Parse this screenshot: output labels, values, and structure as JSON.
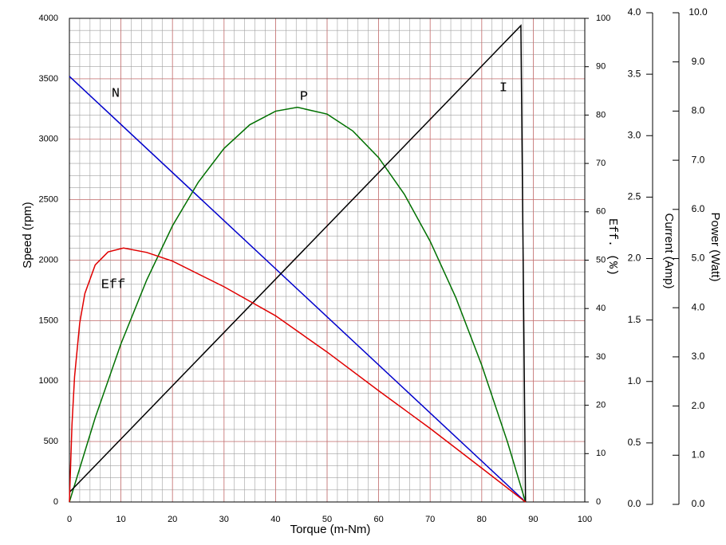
{
  "chart_data": {
    "type": "line",
    "grid": true,
    "grid_color": "#c87070",
    "minor_grid": {
      "x": 2,
      "y": 100,
      "color": "#a0a0a0"
    },
    "xlabel": "Torque (m-Nm)",
    "xlim": [
      0,
      100
    ],
    "xticks": [
      0,
      10,
      20,
      30,
      40,
      50,
      60,
      70,
      80,
      90,
      100
    ],
    "ylabel": "Speed (rpm)",
    "ylim": [
      0,
      4000
    ],
    "yticks": [
      0,
      500,
      1000,
      1500,
      2000,
      2500,
      3000,
      3500,
      4000
    ],
    "y2label": "Eff. (%)",
    "y2lim": [
      0,
      100
    ],
    "y2ticks": [
      0,
      10,
      20,
      30,
      40,
      50,
      60,
      70,
      80,
      90,
      100
    ],
    "y3label": "Current (Amp)",
    "y3lim": [
      0,
      4
    ],
    "y3ticks": [
      {
        "value": 0,
        "label": "0.0"
      },
      {
        "value": 0.5,
        "label": "0.5"
      },
      {
        "value": 1,
        "label": "1.0"
      },
      {
        "value": 1.5,
        "label": "1.5"
      },
      {
        "value": 2,
        "label": "2.0"
      },
      {
        "value": 2.5,
        "label": "2.5"
      },
      {
        "value": 3,
        "label": "3.0"
      },
      {
        "value": 3.5,
        "label": "3.5"
      },
      {
        "value": 4,
        "label": "4.0"
      }
    ],
    "y4label": "Power (Watt)",
    "y4lim": [
      0,
      10
    ],
    "y4ticks": [
      {
        "value": 0,
        "label": "0.0"
      },
      {
        "value": 1,
        "label": "1.0"
      },
      {
        "value": 2,
        "label": "2.0"
      },
      {
        "value": 3,
        "label": "3.0"
      },
      {
        "value": 4,
        "label": "4.0"
      },
      {
        "value": 5,
        "label": "5.0"
      },
      {
        "value": 6,
        "label": "6.0"
      },
      {
        "value": 7,
        "label": "7.0"
      },
      {
        "value": 8,
        "label": "8.0"
      },
      {
        "value": 9,
        "label": "9.0"
      },
      {
        "value": 10,
        "label": "10.0"
      }
    ],
    "series": [
      {
        "name": "N",
        "color": "#0000cc",
        "axis": "y",
        "x": [
          0,
          88.5
        ],
        "values": [
          3520,
          0
        ]
      },
      {
        "name": "P",
        "color": "#007000",
        "axis": "y4",
        "x": [
          0,
          5,
          10,
          15,
          20,
          25,
          30,
          35,
          40,
          44.25,
          50,
          55,
          60,
          65,
          70,
          75,
          80,
          85,
          88.5
        ],
        "values": [
          0,
          1.74,
          3.27,
          4.59,
          5.71,
          6.61,
          7.31,
          7.8,
          8.08,
          8.16,
          8.02,
          7.67,
          7.12,
          6.36,
          5.39,
          4.22,
          2.83,
          1.24,
          0
        ]
      },
      {
        "name": "I",
        "color": "#000000",
        "axis": "y3",
        "x": [
          0,
          87.6,
          88.5
        ],
        "values": [
          0.08,
          3.94,
          0
        ]
      },
      {
        "name": "Eff",
        "color": "#e00000",
        "axis": "y2",
        "x": [
          0,
          0.5,
          1,
          2,
          3,
          5,
          7.5,
          10.5,
          15,
          20,
          30,
          40,
          50,
          60,
          70,
          80,
          88.5
        ],
        "values": [
          0,
          16,
          25.9,
          37,
          43.1,
          49,
          51.7,
          52.5,
          51.6,
          49.8,
          44.5,
          38.5,
          31,
          23,
          15.2,
          7,
          0
        ]
      }
    ]
  }
}
